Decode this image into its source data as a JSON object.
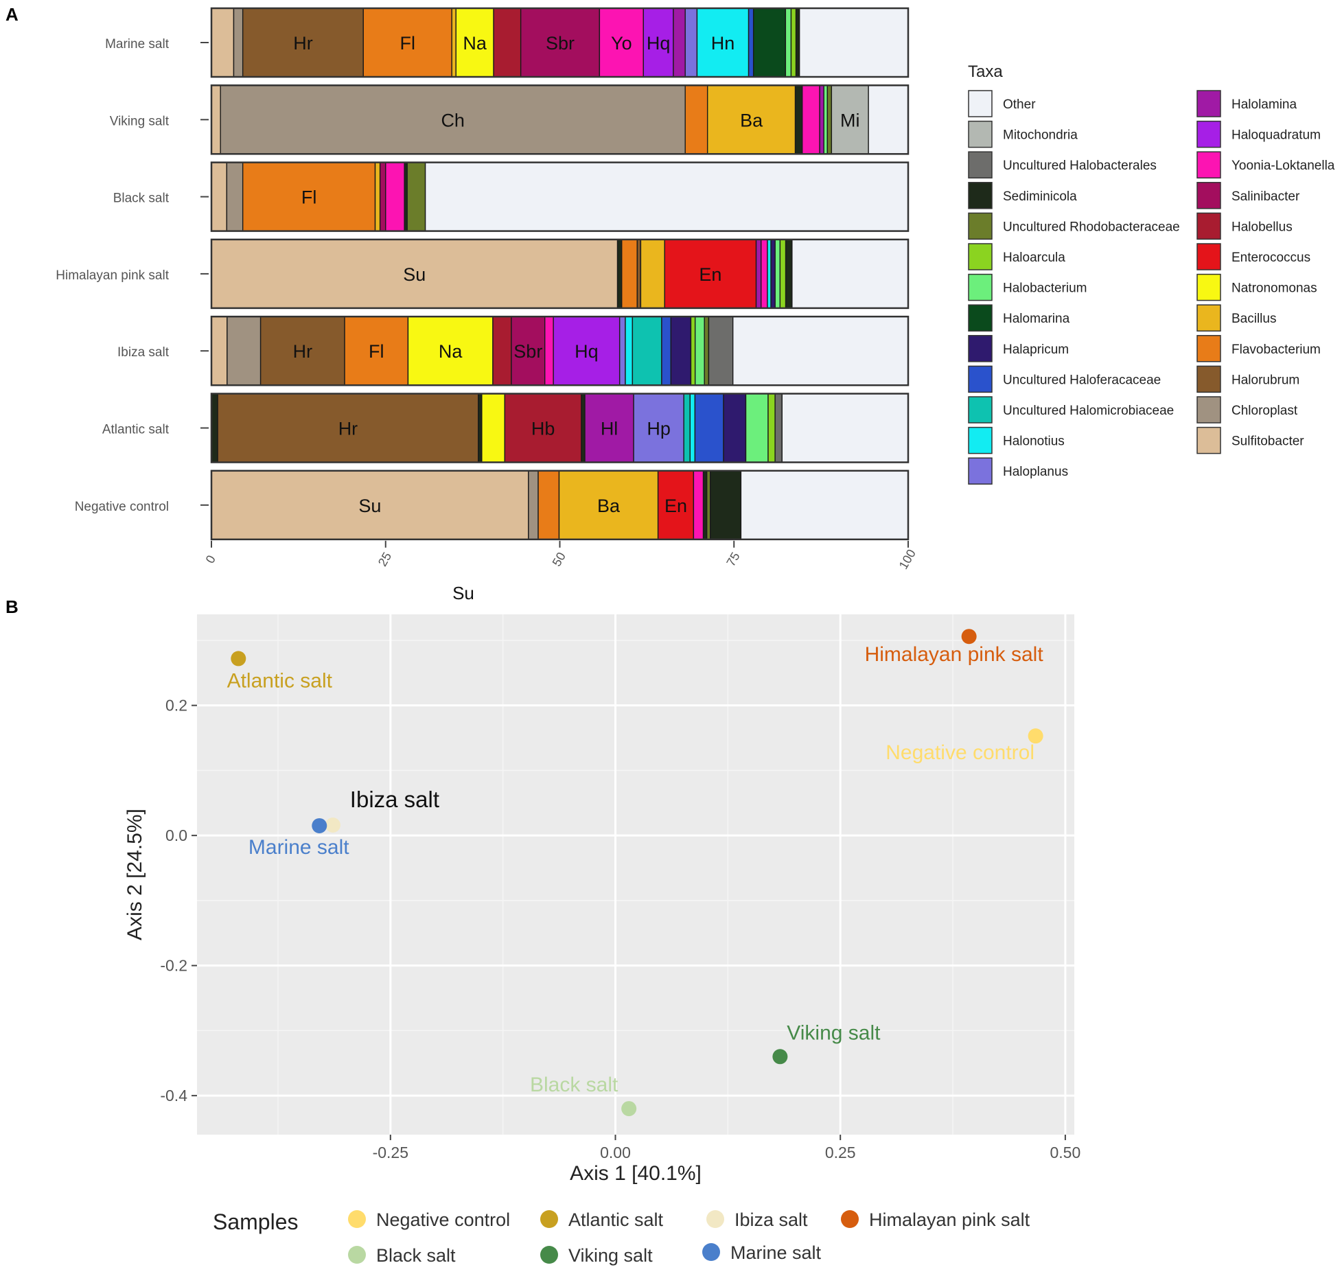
{
  "chart_data": [
    {
      "panel_label": "A",
      "type": "bar",
      "orientation": "horizontal",
      "stacked": true,
      "categories": [
        "Marine salt",
        "Viking salt",
        "Black salt",
        "Himalayan pink salt",
        "Ibiza salt",
        "Atlantic salt",
        "Negative control"
      ],
      "xlim": [
        0,
        100
      ],
      "xticks": [
        "0",
        "25",
        "50",
        "75",
        "100"
      ],
      "xlabel": "Su",
      "legend_title": "Taxa",
      "taxa": [
        {
          "name": "Other",
          "color": "#eff2f7"
        },
        {
          "name": "Mitochondria",
          "color": "#b3b8b2"
        },
        {
          "name": "Uncultured Halobacterales",
          "color": "#6d6d6b"
        },
        {
          "name": "Sediminicola",
          "color": "#1e2a1a"
        },
        {
          "name": "Uncultured Rhodobacteraceae",
          "color": "#6b7d2a"
        },
        {
          "name": "Haloarcula",
          "color": "#8bd320"
        },
        {
          "name": "Halobacterium",
          "color": "#6cef7c"
        },
        {
          "name": "Halomarina",
          "color": "#0a4a1c"
        },
        {
          "name": "Halapricum",
          "color": "#2f1a6e"
        },
        {
          "name": "Uncultured Haloferacaceae",
          "color": "#2a52cc"
        },
        {
          "name": "Uncultured Halomicrobiaceae",
          "color": "#0ec2b0"
        },
        {
          "name": "Halonotius",
          "color": "#12ecf2"
        },
        {
          "name": "Haloplanus",
          "color": "#7b72dd"
        },
        {
          "name": "Halolamina",
          "color": "#a01aa5"
        },
        {
          "name": "Haloquadratum",
          "color": "#a61fe6"
        },
        {
          "name": "Yoonia-Loktanella",
          "color": "#fc14b2"
        },
        {
          "name": "Salinibacter",
          "color": "#a30e5e"
        },
        {
          "name": "Halobellus",
          "color": "#a81c30"
        },
        {
          "name": "Enterococcus",
          "color": "#e4141a"
        },
        {
          "name": "Natronomonas",
          "color": "#f8f812"
        },
        {
          "name": "Bacillus",
          "color": "#eab61e"
        },
        {
          "name": "Flavobacterium",
          "color": "#e87c18"
        },
        {
          "name": "Halorubrum",
          "color": "#865a2c"
        },
        {
          "name": "Chloroplast",
          "color": "#a09281"
        },
        {
          "name": "Sulfitobacter",
          "color": "#dcbd98"
        }
      ],
      "series": [
        {
          "sample": "Marine salt",
          "segments": [
            {
              "taxon": "Sulfitobacter",
              "value": 3.2
            },
            {
              "taxon": "Chloroplast",
              "value": 1.3
            },
            {
              "taxon": "Halorubrum",
              "value": 17.3,
              "label": "Hr"
            },
            {
              "taxon": "Flavobacterium",
              "value": 12.7,
              "label": "Fl"
            },
            {
              "taxon": "Bacillus",
              "value": 0.6
            },
            {
              "taxon": "Natronomonas",
              "value": 5.4,
              "label": "Na"
            },
            {
              "taxon": "Halobellus",
              "value": 3.9
            },
            {
              "taxon": "Salinibacter",
              "value": 11.3,
              "label": "Sbr"
            },
            {
              "taxon": "Yoonia-Loktanella",
              "value": 6.3,
              "label": "Yo"
            },
            {
              "taxon": "Haloquadratum",
              "value": 4.3,
              "label": "Hq"
            },
            {
              "taxon": "Halolamina",
              "value": 1.7
            },
            {
              "taxon": "Haloplanus",
              "value": 1.7
            },
            {
              "taxon": "Halonotius",
              "value": 7.4,
              "label": "Hn"
            },
            {
              "taxon": "Uncultured Haloferacaceae",
              "value": 0.7
            },
            {
              "taxon": "Halomarina",
              "value": 4.6
            },
            {
              "taxon": "Halobacterium",
              "value": 0.8
            },
            {
              "taxon": "Haloarcula",
              "value": 0.7
            },
            {
              "taxon": "Sediminicola",
              "value": 0.5
            },
            {
              "taxon": "Other",
              "value": 15.6
            }
          ]
        },
        {
          "sample": "Viking salt",
          "segments": [
            {
              "taxon": "Sulfitobacter",
              "value": 1.3
            },
            {
              "taxon": "Chloroplast",
              "value": 66.7,
              "label": "Ch"
            },
            {
              "taxon": "Flavobacterium",
              "value": 3.2
            },
            {
              "taxon": "Bacillus",
              "value": 12.6,
              "label": "Ba"
            },
            {
              "taxon": "Sediminicola",
              "value": 1.0
            },
            {
              "taxon": "Yoonia-Loktanella",
              "value": 2.5
            },
            {
              "taxon": "Halolamina",
              "value": 0.6
            },
            {
              "taxon": "Halobacterium",
              "value": 0.5
            },
            {
              "taxon": "Uncultured Rhodobacteraceae",
              "value": 0.6
            },
            {
              "taxon": "Mitochondria",
              "value": 5.3,
              "label": "Mi"
            },
            {
              "taxon": "Other",
              "value": 5.7
            }
          ]
        },
        {
          "sample": "Black salt",
          "segments": [
            {
              "taxon": "Sulfitobacter",
              "value": 2.2
            },
            {
              "taxon": "Chloroplast",
              "value": 2.3
            },
            {
              "taxon": "Flavobacterium",
              "value": 19.0,
              "label": "Fl"
            },
            {
              "taxon": "Bacillus",
              "value": 0.7
            },
            {
              "taxon": "Salinibacter",
              "value": 0.8
            },
            {
              "taxon": "Yoonia-Loktanella",
              "value": 2.7
            },
            {
              "taxon": "Sediminicola",
              "value": 0.4
            },
            {
              "taxon": "Uncultured Rhodobacteraceae",
              "value": 2.6
            },
            {
              "taxon": "Other",
              "value": 69.3
            }
          ]
        },
        {
          "sample": "Himalayan pink salt",
          "segments": [
            {
              "taxon": "Sulfitobacter",
              "value": 57.7,
              "label": "Su"
            },
            {
              "taxon": "Sediminicola",
              "value": 0.6
            },
            {
              "taxon": "Flavobacterium",
              "value": 2.2
            },
            {
              "taxon": "Halorubrum",
              "value": 0.5
            },
            {
              "taxon": "Bacillus",
              "value": 3.4
            },
            {
              "taxon": "Enterococcus",
              "value": 13.0,
              "label": "En"
            },
            {
              "taxon": "Halolamina",
              "value": 0.7
            },
            {
              "taxon": "Yoonia-Loktanella",
              "value": 0.9
            },
            {
              "taxon": "Halonotius",
              "value": 0.5
            },
            {
              "taxon": "Halapricum",
              "value": 0.6
            },
            {
              "taxon": "Halobacterium",
              "value": 0.7
            },
            {
              "taxon": "Haloarcula",
              "value": 0.8
            },
            {
              "taxon": "Sediminicola",
              "value": 0.9
            },
            {
              "taxon": "Other",
              "value": 16.5
            }
          ]
        },
        {
          "sample": "Ibiza salt",
          "segments": [
            {
              "taxon": "Sulfitobacter",
              "value": 2.2
            },
            {
              "taxon": "Chloroplast",
              "value": 4.7
            },
            {
              "taxon": "Halorubrum",
              "value": 11.8,
              "label": "Hr"
            },
            {
              "taxon": "Flavobacterium",
              "value": 8.9,
              "label": "Fl"
            },
            {
              "taxon": "Natronomonas",
              "value": 11.9,
              "label": "Na"
            },
            {
              "taxon": "Halobellus",
              "value": 2.6
            },
            {
              "taxon": "Salinibacter",
              "value": 4.7,
              "label": "Sbr"
            },
            {
              "taxon": "Yoonia-Loktanella",
              "value": 1.2
            },
            {
              "taxon": "Haloquadratum",
              "value": 9.3,
              "label": "Hq"
            },
            {
              "taxon": "Haloplanus",
              "value": 0.8
            },
            {
              "taxon": "Halonotius",
              "value": 1.0
            },
            {
              "taxon": "Uncultured Halomicrobiaceae",
              "value": 4.1
            },
            {
              "taxon": "Uncultured Haloferacaceae",
              "value": 1.3
            },
            {
              "taxon": "Halapricum",
              "value": 2.8
            },
            {
              "taxon": "Haloarcula",
              "value": 0.6
            },
            {
              "taxon": "Halobacterium",
              "value": 1.3
            },
            {
              "taxon": "Uncultured Rhodobacteraceae",
              "value": 0.6
            },
            {
              "taxon": "Uncultured Halobacterales",
              "value": 3.4
            },
            {
              "taxon": "Other",
              "value": 24.6
            }
          ]
        },
        {
          "sample": "Atlantic salt",
          "segments": [
            {
              "taxon": "Sediminicola",
              "value": 0.9
            },
            {
              "taxon": "Halorubrum",
              "value": 37.4,
              "label": "Hr"
            },
            {
              "taxon": "Sediminicola",
              "value": 0.5
            },
            {
              "taxon": "Natronomonas",
              "value": 3.3
            },
            {
              "taxon": "Halobellus",
              "value": 11.0,
              "label": "Hb"
            },
            {
              "taxon": "Sediminicola",
              "value": 0.5
            },
            {
              "taxon": "Halolamina",
              "value": 7.0,
              "label": "Hl"
            },
            {
              "taxon": "Haloplanus",
              "value": 7.2,
              "label": "Hp"
            },
            {
              "taxon": "Uncultured Halomicrobiaceae",
              "value": 0.9
            },
            {
              "taxon": "Halonotius",
              "value": 0.7
            },
            {
              "taxon": "Uncultured Haloferacaceae",
              "value": 4.1
            },
            {
              "taxon": "Halapricum",
              "value": 3.2
            },
            {
              "taxon": "Halobacterium",
              "value": 3.2
            },
            {
              "taxon": "Haloarcula",
              "value": 1.0
            },
            {
              "taxon": "Uncultured Halobacterales",
              "value": 1.0
            },
            {
              "taxon": "Other",
              "value": 18.1
            }
          ]
        },
        {
          "sample": "Negative control",
          "segments": [
            {
              "taxon": "Sulfitobacter",
              "value": 45.5,
              "label": "Su"
            },
            {
              "taxon": "Chloroplast",
              "value": 1.4
            },
            {
              "taxon": "Flavobacterium",
              "value": 3.0
            },
            {
              "taxon": "Bacillus",
              "value": 14.2,
              "label": "Ba"
            },
            {
              "taxon": "Enterococcus",
              "value": 5.1,
              "label": "En"
            },
            {
              "taxon": "Yoonia-Loktanella",
              "value": 1.4
            },
            {
              "taxon": "Sediminicola",
              "value": 0.5
            },
            {
              "taxon": "Uncultured Rhodobacteraceae",
              "value": 0.5
            },
            {
              "taxon": "Sediminicola",
              "value": 4.4
            },
            {
              "taxon": "Other",
              "value": 24.0
            }
          ]
        }
      ]
    },
    {
      "panel_label": "B",
      "type": "scatter",
      "xlabel": "Axis 1 [40.1%]",
      "ylabel": "Axis 2 [24.5%]",
      "xlim": [
        -0.465,
        0.51
      ],
      "ylim": [
        -0.46,
        0.34
      ],
      "xticks": [
        -0.25,
        0.0,
        0.25,
        0.5
      ],
      "xtick_labels": [
        "-0.25",
        "0.00",
        "0.25",
        "0.50"
      ],
      "yticks": [
        0.2,
        0.0,
        -0.2,
        -0.4
      ],
      "ytick_labels": [
        "0.2",
        "0.0",
        "-0.2",
        "-0.4"
      ],
      "legend_title": "Samples",
      "points": [
        {
          "name": "Negative control",
          "x": 0.467,
          "y": 0.153,
          "color": "#ffdc6c"
        },
        {
          "name": "Atlantic salt",
          "x": -0.419,
          "y": 0.272,
          "color": "#c8a020"
        },
        {
          "name": "Ibiza salt",
          "x": -0.314,
          "y": 0.016,
          "color": "#f2e8c4"
        },
        {
          "name": "Himalayan pink salt",
          "x": 0.393,
          "y": 0.306,
          "color": "#d65d0e"
        },
        {
          "name": "Black salt",
          "x": 0.015,
          "y": -0.42,
          "color": "#b9d8a2"
        },
        {
          "name": "Viking salt",
          "x": 0.183,
          "y": -0.34,
          "color": "#468a49"
        },
        {
          "name": "Marine salt",
          "x": -0.329,
          "y": 0.015,
          "color": "#4a7fcb"
        }
      ],
      "label_colors": {
        "Negative control": "#ffdc6c",
        "Atlantic salt": "#c8a020",
        "Ibiza salt": "#111111",
        "Himalayan pink salt": "#d65d0e",
        "Black salt": "#b9d8a2",
        "Viking salt": "#468a49",
        "Marine salt": "#4a7fcb"
      },
      "legend_order": [
        "Negative control",
        "Atlantic salt",
        "Ibiza salt",
        "Himalayan pink salt",
        "Black salt",
        "Viking salt",
        "Marine salt"
      ]
    }
  ]
}
